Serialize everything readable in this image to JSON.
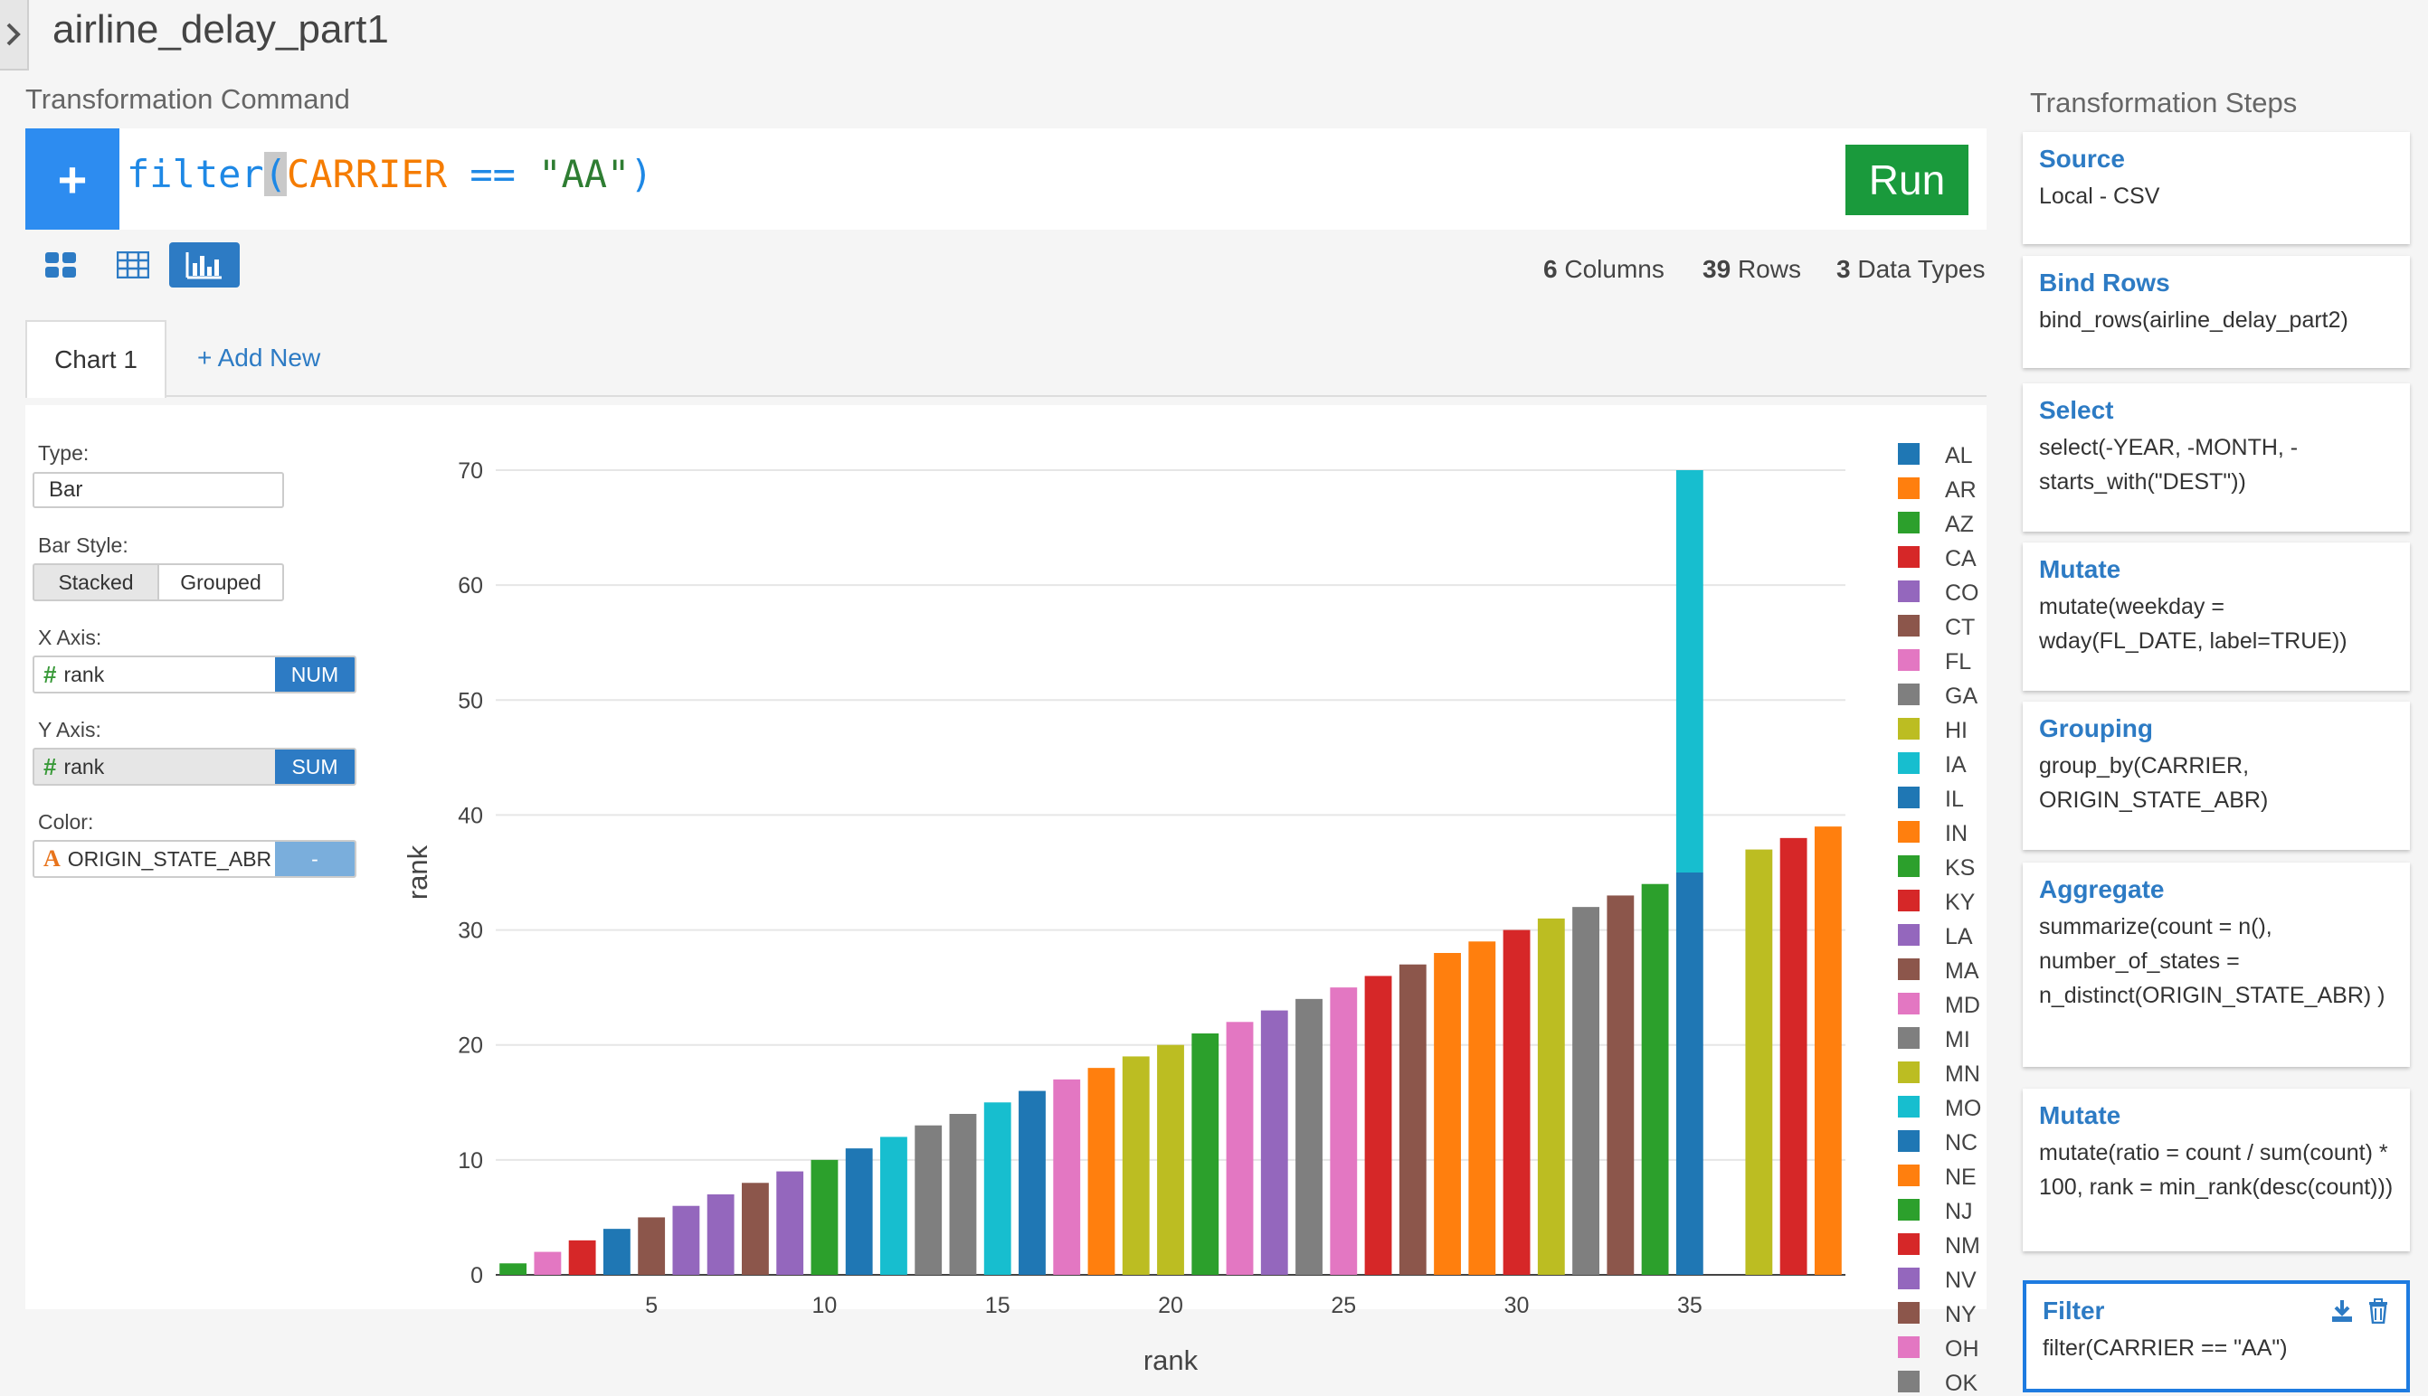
{
  "page_title": "airline_delay_part1",
  "command": {
    "section_label": "Transformation Command",
    "plus": "+",
    "fn": "filter",
    "open_paren": "(",
    "column": "CARRIER",
    "operator": " == ",
    "value": "\"AA\"",
    "close_paren": ")",
    "run_label": "Run"
  },
  "stats": {
    "columns_count": "6",
    "columns_label": "Columns",
    "rows_count": "39",
    "rows_label": "Rows",
    "types_count": "3",
    "types_label": "Data Types"
  },
  "tabs": {
    "chart1": "Chart 1",
    "add_new": "+ Add New"
  },
  "config": {
    "type_label": "Type:",
    "type_value": "Bar",
    "bar_style_label": "Bar Style:",
    "stacked": "Stacked",
    "grouped": "Grouped",
    "x_axis_label": "X Axis:",
    "x_field": "rank",
    "x_tag": "NUM",
    "y_axis_label": "Y Axis:",
    "y_field": "rank",
    "y_tag": "SUM",
    "color_label": "Color:",
    "color_field": "ORIGIN_STATE_ABR",
    "color_tag": "-",
    "hash": "#",
    "char_type": "A"
  },
  "steps": {
    "title": "Transformation Steps",
    "items": [
      {
        "title": "Source",
        "desc": "Local - CSV"
      },
      {
        "title": "Bind Rows",
        "desc": "bind_rows(airline_delay_part2)"
      },
      {
        "title": "Select",
        "desc": "select(-YEAR, -MONTH, -starts_with(\"DEST\"))"
      },
      {
        "title": "Mutate",
        "desc": "mutate(weekday = wday(FL_DATE, label=TRUE))"
      },
      {
        "title": "Grouping",
        "desc": "group_by(CARRIER, ORIGIN_STATE_ABR)"
      },
      {
        "title": "Aggregate",
        "desc": "summarize(count = n(), number_of_states = n_distinct(ORIGIN_STATE_ABR) )"
      },
      {
        "title": "Mutate",
        "desc": "mutate(ratio = count / sum(count) * 100, rank = min_rank(desc(count)))"
      },
      {
        "title": "Filter",
        "desc": "filter(CARRIER == \"AA\")"
      }
    ]
  },
  "chart_data": {
    "type": "bar",
    "stacked": true,
    "xlabel": "rank",
    "ylabel": "rank",
    "ylim": [
      0,
      70
    ],
    "x_ticks": [
      5,
      10,
      15,
      20,
      25,
      30,
      35
    ],
    "y_ticks": [
      0,
      10,
      20,
      30,
      40,
      50,
      60,
      70
    ],
    "grid": true,
    "legend_position": "right",
    "legend": [
      "AL",
      "AR",
      "AZ",
      "CA",
      "CO",
      "CT",
      "FL",
      "GA",
      "HI",
      "IA",
      "IL",
      "IN",
      "KS",
      "KY",
      "LA",
      "MA",
      "MD",
      "MI",
      "MN",
      "MO",
      "NC",
      "NE",
      "NJ",
      "NM",
      "NV",
      "NY",
      "OH",
      "OK"
    ],
    "colors": [
      "#1f77b4",
      "#ff7f0e",
      "#2ca02c",
      "#d62728",
      "#9467bd",
      "#8c564b",
      "#e377c2",
      "#7f7f7f",
      "#bcbd22",
      "#17becf"
    ],
    "bars": [
      {
        "x": 1,
        "segments": [
          {
            "state": "NJ",
            "y": 1
          }
        ]
      },
      {
        "x": 2,
        "segments": [
          {
            "state": "OH",
            "y": 2
          }
        ]
      },
      {
        "x": 3,
        "segments": [
          {
            "state": "KY",
            "y": 3
          }
        ]
      },
      {
        "x": 4,
        "segments": [
          {
            "state": "IL",
            "y": 4
          }
        ]
      },
      {
        "x": 5,
        "segments": [
          {
            "state": "MA",
            "y": 5
          }
        ]
      },
      {
        "x": 6,
        "segments": [
          {
            "state": "LA",
            "y": 6
          }
        ]
      },
      {
        "x": 7,
        "segments": [
          {
            "state": "NV",
            "y": 7
          }
        ]
      },
      {
        "x": 8,
        "segments": [
          {
            "state": "NY",
            "y": 8
          }
        ]
      },
      {
        "x": 9,
        "segments": [
          {
            "state": "CO",
            "y": 9
          }
        ]
      },
      {
        "x": 10,
        "segments": [
          {
            "state": "KS",
            "y": 10
          }
        ]
      },
      {
        "x": 11,
        "segments": [
          {
            "state": "NC",
            "y": 11
          }
        ]
      },
      {
        "x": 12,
        "segments": [
          {
            "state": "IA",
            "y": 12
          }
        ]
      },
      {
        "x": 13,
        "segments": [
          {
            "state": "GA",
            "y": 13
          }
        ]
      },
      {
        "x": 14,
        "segments": [
          {
            "state": "MI",
            "y": 14
          }
        ]
      },
      {
        "x": 15,
        "segments": [
          {
            "state": "MO",
            "y": 15
          }
        ]
      },
      {
        "x": 16,
        "segments": [
          {
            "state": "AL",
            "y": 16
          }
        ]
      },
      {
        "x": 17,
        "segments": [
          {
            "state": "MD",
            "y": 17
          }
        ]
      },
      {
        "x": 18,
        "segments": [
          {
            "state": "NE",
            "y": 18
          }
        ]
      },
      {
        "x": 19,
        "segments": [
          {
            "state": "HI",
            "y": 19
          }
        ]
      },
      {
        "x": 20,
        "segments": [
          {
            "state": "MN",
            "y": 20
          }
        ]
      },
      {
        "x": 21,
        "segments": [
          {
            "state": "AZ",
            "y": 21
          }
        ]
      },
      {
        "x": 22,
        "segments": [
          {
            "state": "OH",
            "y": 22
          }
        ]
      },
      {
        "x": 23,
        "segments": [
          {
            "state": "CO",
            "y": 23
          }
        ]
      },
      {
        "x": 24,
        "segments": [
          {
            "state": "GA",
            "y": 24
          }
        ]
      },
      {
        "x": 25,
        "segments": [
          {
            "state": "FL",
            "y": 25
          }
        ]
      },
      {
        "x": 26,
        "segments": [
          {
            "state": "CA",
            "y": 26
          }
        ]
      },
      {
        "x": 27,
        "segments": [
          {
            "state": "CT",
            "y": 27
          }
        ]
      },
      {
        "x": 28,
        "segments": [
          {
            "state": "IN",
            "y": 28
          }
        ]
      },
      {
        "x": 29,
        "segments": [
          {
            "state": "AR",
            "y": 29
          }
        ]
      },
      {
        "x": 30,
        "segments": [
          {
            "state": "KY",
            "y": 30
          }
        ]
      },
      {
        "x": 31,
        "segments": [
          {
            "state": "HI",
            "y": 31
          }
        ]
      },
      {
        "x": 32,
        "segments": [
          {
            "state": "MI",
            "y": 32
          }
        ]
      },
      {
        "x": 33,
        "segments": [
          {
            "state": "NY",
            "y": 33
          }
        ]
      },
      {
        "x": 34,
        "segments": [
          {
            "state": "AZ",
            "y": 34
          }
        ]
      },
      {
        "x": 35,
        "segments": [
          {
            "state": "AL",
            "y": 35
          },
          {
            "state": "MO",
            "y": 35
          }
        ]
      },
      {
        "x": 37,
        "segments": [
          {
            "state": "MN",
            "y": 37
          }
        ]
      },
      {
        "x": 38,
        "segments": [
          {
            "state": "NM",
            "y": 38
          }
        ]
      },
      {
        "x": 39,
        "segments": [
          {
            "state": "NE",
            "y": 39
          }
        ]
      }
    ]
  }
}
